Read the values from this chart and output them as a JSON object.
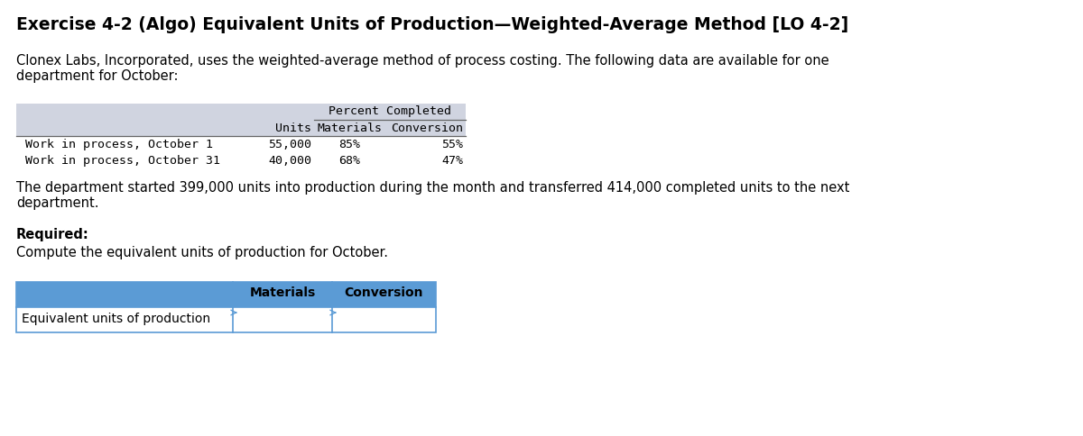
{
  "title": "Exercise 4-2 (Algo) Equivalent Units of Production—Weighted-Average Method [LO 4-2]",
  "intro_text": "Clonex Labs, Incorporated, uses the weighted-average method of process costing. The following data are available for one\ndepartment for October:",
  "body_text": "The department started 399,000 units into production during the month and transferred 414,000 completed units to the next\ndepartment.",
  "required_label": "Required:",
  "required_text": "Compute the equivalent units of production for October.",
  "top_table": {
    "header_bg": "#d0d4e0",
    "percent_label": "Percent Completed",
    "col_headers": [
      "",
      "Units",
      "Materials",
      "Conversion"
    ],
    "rows": [
      [
        "Work in process, October 1",
        "55,000",
        "85%",
        "55%"
      ],
      [
        "Work in process, October 31",
        "40,000",
        "68%",
        "47%"
      ]
    ]
  },
  "bottom_table": {
    "header_bg": "#5b9bd5",
    "col_headers": [
      "",
      "Materials",
      "Conversion"
    ],
    "rows": [
      [
        "Equivalent units of production",
        "",
        ""
      ]
    ],
    "border_color": "#5b9bd5"
  },
  "bg_color": "#ffffff"
}
